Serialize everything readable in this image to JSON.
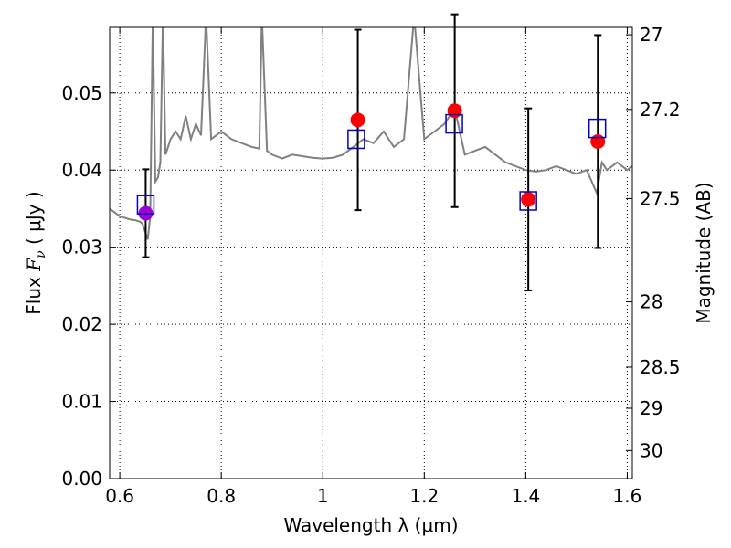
{
  "chart_data": {
    "type": "scatter",
    "xlabel": "Wavelength  λ (μm)",
    "ylabel_prefix": "Flux  ",
    "ylabel_symbol": "F",
    "ylabel_subscript": "ν",
    "ylabel_unit": "  ( μJy )",
    "y2label": "Magnitude (AB)",
    "xlim": [
      0.58,
      1.61
    ],
    "ylim": [
      0.0,
      0.0585
    ],
    "xticks": [
      0.6,
      0.8,
      1.0,
      1.2,
      1.4,
      1.6
    ],
    "xtick_labels": [
      "0.6",
      "0.8",
      "1",
      "1.2",
      "1.4",
      "1.6"
    ],
    "yticks": [
      0.0,
      0.01,
      0.02,
      0.03,
      0.04,
      0.05
    ],
    "ytick_labels": [
      "0.00",
      "0.01",
      "0.02",
      "0.03",
      "0.04",
      "0.05"
    ],
    "y2ticks": [
      {
        "value": 27,
        "label": "27"
      },
      {
        "value": 27.2,
        "label": "27.2"
      },
      {
        "value": 27.5,
        "label": "27.5"
      },
      {
        "value": 28,
        "label": "28"
      },
      {
        "value": 28.5,
        "label": "28.5"
      },
      {
        "value": 29,
        "label": "29"
      },
      {
        "value": 30,
        "label": "30"
      }
    ],
    "grid": true,
    "colors": {
      "model_sed": "#808080",
      "observed": "#ff0000",
      "observed_highlight": "#a000d0",
      "model_photometry": "#0000cc",
      "errorbar": "#000000"
    },
    "model_sed": {
      "x": [
        0.58,
        0.59,
        0.6,
        0.61,
        0.62,
        0.63,
        0.64,
        0.645,
        0.65,
        0.655,
        0.66,
        0.665,
        0.67,
        0.675,
        0.68,
        0.685,
        0.69,
        0.695,
        0.7,
        0.71,
        0.72,
        0.73,
        0.74,
        0.75,
        0.76,
        0.77,
        0.78,
        0.79,
        0.8,
        0.82,
        0.84,
        0.86,
        0.875,
        0.88,
        0.89,
        0.9,
        0.92,
        0.94,
        0.96,
        0.98,
        1.0,
        1.02,
        1.04,
        1.06,
        1.08,
        1.1,
        1.12,
        1.14,
        1.16,
        1.18,
        1.2,
        1.22,
        1.24,
        1.26,
        1.28,
        1.3,
        1.32,
        1.34,
        1.36,
        1.38,
        1.4,
        1.42,
        1.44,
        1.46,
        1.48,
        1.5,
        1.52,
        1.53,
        1.54,
        1.55,
        1.56,
        1.58,
        1.6,
        1.61
      ],
      "y": [
        0.035,
        0.0345,
        0.034,
        0.0338,
        0.0336,
        0.0335,
        0.0333,
        0.033,
        0.032,
        0.031,
        0.034,
        0.06,
        0.0385,
        0.039,
        0.041,
        0.06,
        0.042,
        0.043,
        0.044,
        0.045,
        0.044,
        0.047,
        0.044,
        0.046,
        0.0445,
        0.06,
        0.044,
        0.0445,
        0.045,
        0.044,
        0.0435,
        0.043,
        0.0428,
        0.06,
        0.0425,
        0.042,
        0.0415,
        0.042,
        0.0418,
        0.0416,
        0.0415,
        0.0416,
        0.042,
        0.043,
        0.044,
        0.0435,
        0.045,
        0.043,
        0.044,
        0.06,
        0.044,
        0.045,
        0.046,
        0.048,
        0.042,
        0.0425,
        0.043,
        0.042,
        0.041,
        0.0405,
        0.04,
        0.0398,
        0.04,
        0.0405,
        0.04,
        0.0395,
        0.04,
        0.0385,
        0.037,
        0.041,
        0.04,
        0.041,
        0.04,
        0.0405
      ]
    },
    "observed": [
      {
        "x": 0.651,
        "y": 0.0344,
        "yerr": 0.0057,
        "highlight": true
      },
      {
        "x": 1.069,
        "y": 0.0465,
        "yerr": 0.0117,
        "highlight": false
      },
      {
        "x": 1.26,
        "y": 0.0477,
        "yerr": 0.0125,
        "highlight": false
      },
      {
        "x": 1.405,
        "y": 0.0362,
        "yerr": 0.0118,
        "highlight": false
      },
      {
        "x": 1.542,
        "y": 0.0437,
        "yerr": 0.0138,
        "highlight": false
      }
    ],
    "model_photometry": [
      {
        "x": 0.651,
        "y": 0.0355
      },
      {
        "x": 1.066,
        "y": 0.044
      },
      {
        "x": 1.259,
        "y": 0.046
      },
      {
        "x": 1.405,
        "y": 0.036
      },
      {
        "x": 1.541,
        "y": 0.0454
      }
    ]
  }
}
